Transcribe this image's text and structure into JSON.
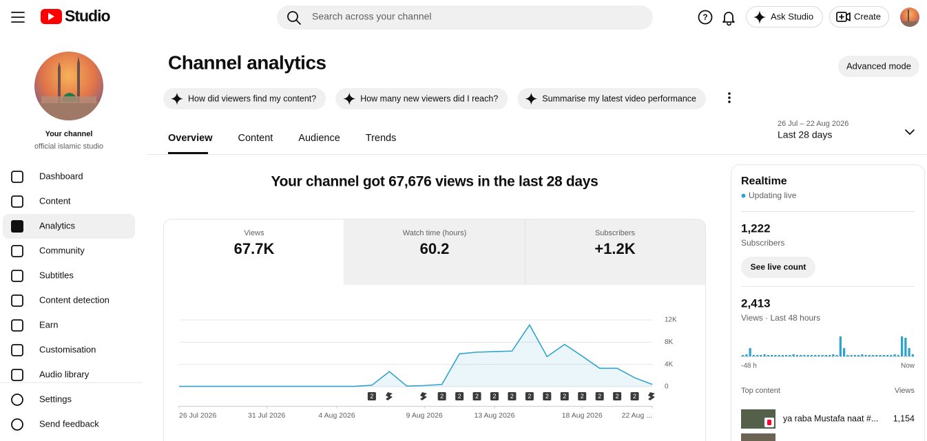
{
  "header": {
    "logo": "Studio",
    "search_placeholder": "Search across your channel",
    "ask_studio": "Ask Studio",
    "create": "Create"
  },
  "sidebar": {
    "channel_title": "Your channel",
    "channel_name": "official islamic studio",
    "nav": [
      "Dashboard",
      "Content",
      "Analytics",
      "Community",
      "Subtitles",
      "Content detection",
      "Earn",
      "Customisation",
      "Audio library"
    ],
    "footer": [
      "Settings",
      "Send feedback"
    ]
  },
  "main": {
    "title": "Channel analytics",
    "advanced_mode": "Advanced mode",
    "prompts": [
      "How did viewers find my content?",
      "How many new viewers did I reach?",
      "Summarise my latest video performance"
    ],
    "tabs": [
      "Overview",
      "Content",
      "Audience",
      "Trends"
    ],
    "date_range": "26 Jul – 22 Aug 2026",
    "period": "Last 28 days",
    "headline": "Your channel got 67,676 views in the last 28 days",
    "metrics": [
      {
        "label": "Views",
        "value": "67.7K"
      },
      {
        "label": "Watch time (hours)",
        "value": "60.2"
      },
      {
        "label": "Subscribers",
        "value": "+1.2K"
      }
    ]
  },
  "chart_data": [
    {
      "type": "line",
      "categories": [
        "26 Jul 2026",
        null,
        null,
        null,
        null,
        "31 Jul 2026",
        null,
        null,
        null,
        "4 Aug 2026",
        null,
        null,
        null,
        null,
        "9 Aug 2026",
        null,
        null,
        null,
        "13 Aug 2026",
        null,
        null,
        null,
        null,
        "18 Aug 2026",
        null,
        null,
        null,
        "22 Aug ..."
      ],
      "values": [
        50,
        50,
        50,
        50,
        50,
        50,
        50,
        50,
        50,
        50,
        50,
        250,
        2700,
        100,
        200,
        400,
        5900,
        6200,
        6300,
        6400,
        11100,
        5400,
        7600,
        5500,
        3300,
        3300,
        1600,
        400
      ],
      "color": "#2fa3cf",
      "ylim": [
        0,
        12000
      ],
      "yticks": [
        0,
        {
          "value": 4000,
          "label": "4K"
        },
        {
          "value": 8000,
          "label": "8K"
        },
        {
          "value": 12000,
          "label": "12K"
        }
      ],
      "grid": true,
      "markers": [
        null,
        null,
        null,
        null,
        null,
        null,
        null,
        null,
        null,
        null,
        null,
        "2",
        null,
        null,
        null,
        "2",
        "2",
        "2",
        "2",
        "2",
        "2",
        "2",
        "2",
        "2",
        "2",
        "2",
        "2",
        null
      ]
    },
    {
      "type": "bar",
      "values": [
        20,
        30,
        120,
        20,
        20,
        20,
        30,
        20,
        20,
        20,
        20,
        20,
        20,
        20,
        30,
        20,
        20,
        20,
        20,
        20,
        20,
        20,
        20,
        20,
        20,
        30,
        20,
        290,
        120,
        20,
        20,
        20,
        20,
        30,
        20,
        20,
        20,
        20,
        20,
        20,
        20,
        20,
        30,
        20,
        290,
        270,
        120,
        30
      ],
      "color": "#2fa3cf",
      "x_start_label": "-48 h",
      "x_end_label": "Now"
    }
  ],
  "realtime": {
    "title": "Realtime",
    "status": "Updating live",
    "subscribers": "1,222",
    "subscribers_label": "Subscribers",
    "see_live": "See live count",
    "views": "2,413",
    "views_label": "Views · Last 48 hours",
    "top_content": "Top content",
    "views_header": "Views",
    "items": [
      {
        "title": "ya raba Mustafa naat #...",
        "views": "1,154"
      }
    ]
  }
}
